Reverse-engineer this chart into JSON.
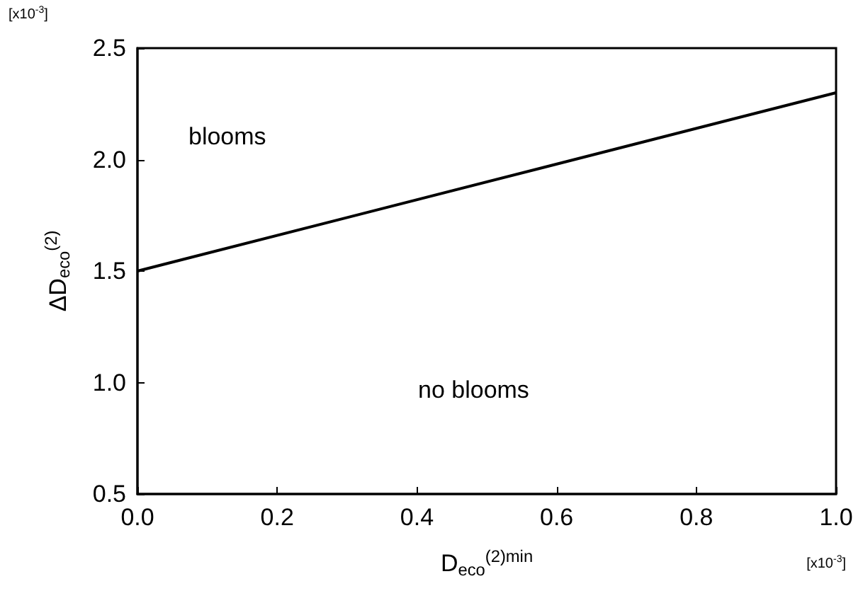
{
  "chart_data": {
    "type": "line",
    "xlabel": "D$_{eco}$$^{(2)min}$",
    "ylabel": "ΔD$_{eco}$$^{(2)}$",
    "x": [
      0,
      1
    ],
    "series": [
      {
        "color": "#000000",
        "values": [
          1.5,
          2.3
        ]
      }
    ],
    "xlim": [
      0,
      1
    ],
    "ylim": [
      0.5,
      2.5
    ],
    "xticks": [
      {
        "value": 0,
        "label": "0.0"
      },
      0.2,
      0.4,
      0.6,
      0.8,
      {
        "value": 1,
        "label": "1.0"
      }
    ],
    "yticks": [
      0.5,
      {
        "value": 1,
        "label": "1.0"
      },
      1.5,
      {
        "value": 2,
        "label": "2.0"
      },
      2.5
    ],
    "grid": false,
    "marker": "none",
    "line_style": "solid",
    "annotations": [
      "[x10$^{-3}$]",
      "[x10$^{-3}$]",
      "blooms",
      "no blooms"
    ]
  }
}
